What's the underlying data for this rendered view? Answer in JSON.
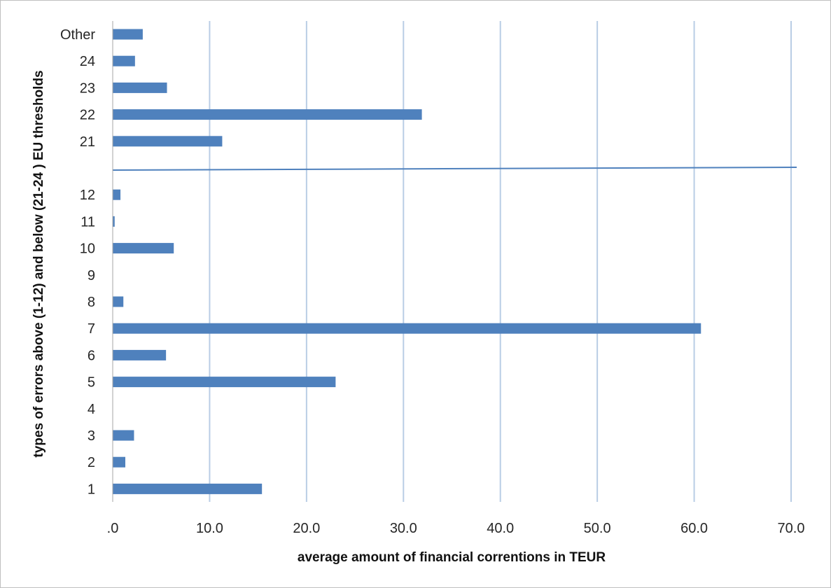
{
  "chart_data": {
    "type": "bar",
    "orientation": "horizontal",
    "title": "",
    "xlabel": "average amount of financial correntions in TEUR",
    "ylabel": "types of errors above (1-12) and below (21-24 ) EU thresholds",
    "xlim": [
      0,
      70
    ],
    "x_ticks": [
      ".0",
      "10.0",
      "20.0",
      "30.0",
      "40.0",
      "50.0",
      "60.0",
      "70.0"
    ],
    "grid": "vertical",
    "legend": "none",
    "bar_color": "#4f81bd",
    "grid_color": "#b9cde5",
    "separator_color": "#4f81bd",
    "categories": [
      "Other",
      "24",
      "23",
      "22",
      "21",
      "",
      "12",
      "11",
      "10",
      "9",
      "8",
      "7",
      "6",
      "5",
      "4",
      "3",
      "2",
      "1"
    ],
    "values": [
      3.1,
      2.3,
      5.6,
      31.9,
      11.3,
      null,
      0.8,
      0.2,
      6.3,
      0,
      1.1,
      60.7,
      5.5,
      23.0,
      0,
      2.2,
      1.3,
      15.4
    ]
  }
}
